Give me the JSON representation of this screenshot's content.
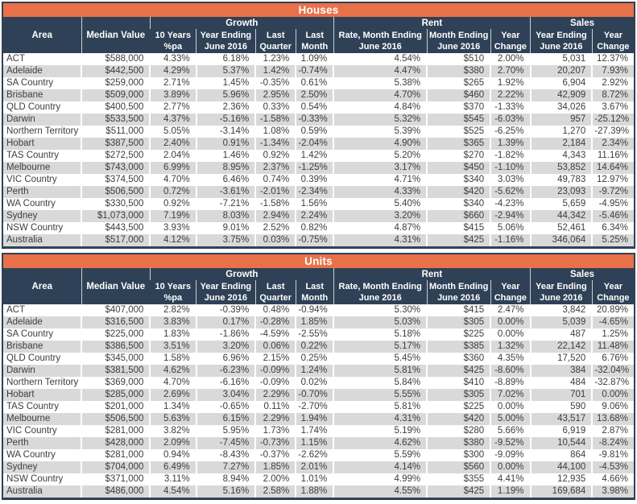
{
  "colors": {
    "banner_orange": "#E8714A",
    "header_navy": "#2F4156",
    "row_alt_gray": "#D9D9D9",
    "body_text": "#3D3D3D",
    "header_text": "#FFFFFF"
  },
  "chart_data": [
    {
      "type": "table",
      "title": "Houses",
      "lead_columns": [
        "Area",
        "Median Value"
      ],
      "groups": [
        {
          "label": "Growth",
          "columns": [
            "10 Years\n%pa",
            "Year Ending\nJune 2016",
            "Last\nQuarter",
            "Last\nMonth"
          ]
        },
        {
          "label": "Rent",
          "columns": [
            "Rate, Month Ending\nJune 2016",
            "Month Ending\nJune 2016",
            "Year\nChange"
          ]
        },
        {
          "label": "Sales",
          "columns": [
            "Year Ending\nJune 2016",
            "Year\nChange"
          ]
        }
      ],
      "rows": [
        [
          "ACT",
          "$588,000",
          "4.33%",
          "6.18%",
          "1.23%",
          "1.09%",
          "4.54%",
          "$510",
          "2.00%",
          "5,031",
          "12.37%"
        ],
        [
          "Adelaide",
          "$442,500",
          "4.29%",
          "5.37%",
          "1.42%",
          "-0.74%",
          "4.47%",
          "$380",
          "2.70%",
          "20,207",
          "7.93%"
        ],
        [
          "SA Country",
          "$259,000",
          "2.71%",
          "1.45%",
          "-0.35%",
          "0.61%",
          "5.38%",
          "$265",
          "1.92%",
          "6,904",
          "2.92%"
        ],
        [
          "Brisbane",
          "$509,000",
          "3.89%",
          "5.96%",
          "2.95%",
          "2.50%",
          "4.70%",
          "$460",
          "2.22%",
          "42,909",
          "8.72%"
        ],
        [
          "QLD Country",
          "$400,500",
          "2.77%",
          "2.36%",
          "0.33%",
          "0.54%",
          "4.84%",
          "$370",
          "-1.33%",
          "34,026",
          "3.67%"
        ],
        [
          "Darwin",
          "$533,500",
          "4.37%",
          "-5.16%",
          "-1.58%",
          "-0.33%",
          "5.32%",
          "$545",
          "-6.03%",
          "957",
          "-25.12%"
        ],
        [
          "Northern Territory",
          "$511,000",
          "5.05%",
          "-3.14%",
          "1.08%",
          "0.59%",
          "5.39%",
          "$525",
          "-6.25%",
          "1,270",
          "-27.39%"
        ],
        [
          "Hobart",
          "$387,500",
          "2.40%",
          "0.91%",
          "-1.34%",
          "-2.04%",
          "4.90%",
          "$365",
          "1.39%",
          "2,184",
          "2.34%"
        ],
        [
          "TAS Country",
          "$272,500",
          "2.04%",
          "1.46%",
          "0.92%",
          "1.42%",
          "5.20%",
          "$270",
          "-1.82%",
          "4,343",
          "11.16%"
        ],
        [
          "Melbourne",
          "$743,000",
          "6.99%",
          "8.95%",
          "2.37%",
          "-1.25%",
          "3.17%",
          "$450",
          "-1.10%",
          "53,852",
          "14.64%"
        ],
        [
          "VIC Country",
          "$374,500",
          "4.70%",
          "6.46%",
          "0.74%",
          "0.39%",
          "4.71%",
          "$340",
          "3.03%",
          "49,783",
          "12.97%"
        ],
        [
          "Perth",
          "$506,500",
          "0.72%",
          "-3.61%",
          "-2.01%",
          "-2.34%",
          "4.33%",
          "$420",
          "-5.62%",
          "23,093",
          "-9.72%"
        ],
        [
          "WA Country",
          "$330,500",
          "0.92%",
          "-7.21%",
          "-1.58%",
          "1.56%",
          "5.40%",
          "$340",
          "-4.23%",
          "5,659",
          "-4.95%"
        ],
        [
          "Sydney",
          "$1,073,000",
          "7.19%",
          "8.03%",
          "2.94%",
          "2.24%",
          "3.20%",
          "$660",
          "-2.94%",
          "44,342",
          "-5.46%"
        ],
        [
          "NSW Country",
          "$443,500",
          "3.93%",
          "9.01%",
          "2.52%",
          "0.82%",
          "4.87%",
          "$415",
          "5.06%",
          "52,461",
          "6.34%"
        ],
        [
          "Australia",
          "$517,000",
          "4.12%",
          "3.75%",
          "0.03%",
          "-0.75%",
          "4.31%",
          "$425",
          "-1.16%",
          "346,064",
          "5.25%"
        ]
      ]
    },
    {
      "type": "table",
      "title": "Units",
      "lead_columns": [
        "Area",
        "Median Value"
      ],
      "groups": [
        {
          "label": "Growth",
          "columns": [
            "10 Years\n%pa",
            "Year Ending\nJune 2016",
            "Last\nQuarter",
            "Last\nMonth"
          ]
        },
        {
          "label": "Rent",
          "columns": [
            "Rate, Month Ending\nJune 2016",
            "Month Ending\nJune 2016",
            "Year\nChange"
          ]
        },
        {
          "label": "Sales",
          "columns": [
            "Year Ending\nJune 2016",
            "Year\nChange"
          ]
        }
      ],
      "rows": [
        [
          "ACT",
          "$407,000",
          "2.82%",
          "-0.39%",
          "0.48%",
          "-0.94%",
          "5.30%",
          "$415",
          "2.47%",
          "3,842",
          "20.89%"
        ],
        [
          "Adelaide",
          "$316,500",
          "3.83%",
          "0.17%",
          "-0.28%",
          "1.85%",
          "5.03%",
          "$305",
          "0.00%",
          "5,039",
          "-4.65%"
        ],
        [
          "SA Country",
          "$225,000",
          "1.83%",
          "-1.86%",
          "-4.59%",
          "-2.55%",
          "5.18%",
          "$225",
          "0.00%",
          "487",
          "1.25%"
        ],
        [
          "Brisbane",
          "$386,500",
          "3.51%",
          "3.20%",
          "0.06%",
          "0.22%",
          "5.17%",
          "$385",
          "1.32%",
          "22,142",
          "11.48%"
        ],
        [
          "QLD Country",
          "$345,000",
          "1.58%",
          "6.96%",
          "2.15%",
          "0.25%",
          "5.45%",
          "$360",
          "4.35%",
          "17,520",
          "6.76%"
        ],
        [
          "Darwin",
          "$381,500",
          "4.62%",
          "-6.23%",
          "-0.09%",
          "1.24%",
          "5.81%",
          "$425",
          "-8.60%",
          "384",
          "-32.04%"
        ],
        [
          "Northern Territory",
          "$369,000",
          "4.70%",
          "-6.16%",
          "-0.09%",
          "0.02%",
          "5.84%",
          "$410",
          "-8.89%",
          "484",
          "-32.87%"
        ],
        [
          "Hobart",
          "$285,000",
          "2.69%",
          "3.04%",
          "2.29%",
          "-0.70%",
          "5.55%",
          "$305",
          "7.02%",
          "701",
          "0.00%"
        ],
        [
          "TAS Country",
          "$201,000",
          "1.34%",
          "-0.65%",
          "0.11%",
          "-2.70%",
          "5.81%",
          "$225",
          "0.00%",
          "590",
          "9.06%"
        ],
        [
          "Melbourne",
          "$506,500",
          "5.63%",
          "6.15%",
          "2.29%",
          "1.94%",
          "4.31%",
          "$420",
          "5.00%",
          "43,517",
          "13.68%"
        ],
        [
          "VIC Country",
          "$281,000",
          "3.82%",
          "5.95%",
          "1.73%",
          "1.74%",
          "5.19%",
          "$280",
          "5.66%",
          "6,919",
          "2.87%"
        ],
        [
          "Perth",
          "$428,000",
          "2.09%",
          "-7.45%",
          "-0.73%",
          "1.15%",
          "4.62%",
          "$380",
          "-9.52%",
          "10,544",
          "-8.24%"
        ],
        [
          "WA Country",
          "$281,000",
          "0.94%",
          "-8.43%",
          "-0.37%",
          "-2.62%",
          "5.59%",
          "$300",
          "-9.09%",
          "864",
          "-9.81%"
        ],
        [
          "Sydney",
          "$704,000",
          "6.49%",
          "7.27%",
          "1.85%",
          "2.01%",
          "4.14%",
          "$560",
          "0.00%",
          "44,100",
          "-4.53%"
        ],
        [
          "NSW Country",
          "$371,000",
          "3.11%",
          "8.94%",
          "2.00%",
          "1.01%",
          "4.99%",
          "$355",
          "4.41%",
          "12,935",
          "4.66%"
        ],
        [
          "Australia",
          "$486,000",
          "4.54%",
          "5.16%",
          "2.58%",
          "1.88%",
          "4.55%",
          "$425",
          "1.19%",
          "169,684",
          "3.98%"
        ]
      ]
    }
  ]
}
